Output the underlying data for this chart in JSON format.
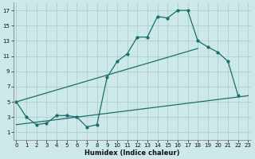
{
  "xlabel": "Humidex (Indice chaleur)",
  "bg_color": "#cde8e8",
  "grid_color": "#aacccc",
  "line_color": "#1a6e6a",
  "x_values": [
    0,
    1,
    2,
    3,
    4,
    5,
    6,
    7,
    8,
    9,
    10,
    11,
    12,
    13,
    14,
    15,
    16,
    17,
    18,
    19,
    20,
    21,
    22,
    23
  ],
  "line1_y": [
    5.0,
    3.0,
    2.0,
    2.2,
    3.2,
    3.2,
    3.0,
    1.7,
    2.0,
    8.2,
    10.3,
    11.3,
    13.5,
    13.5,
    16.2,
    16.0,
    17.0,
    17.0,
    13.0,
    12.2,
    11.5,
    10.3,
    5.8,
    null
  ],
  "line2_pts": [
    [
      0,
      5.0
    ],
    [
      18,
      12.0
    ]
  ],
  "line3_pts": [
    [
      0,
      2.0
    ],
    [
      23,
      5.8
    ]
  ],
  "ylim": [
    0,
    18
  ],
  "xlim": [
    -0.3,
    23.3
  ],
  "yticks": [
    1,
    3,
    5,
    7,
    9,
    11,
    13,
    15,
    17
  ],
  "xticks": [
    0,
    1,
    2,
    3,
    4,
    5,
    6,
    7,
    8,
    9,
    10,
    11,
    12,
    13,
    14,
    15,
    16,
    17,
    18,
    19,
    20,
    21,
    22,
    23
  ],
  "xlabel_fontsize": 6.0,
  "tick_fontsize": 5.0
}
